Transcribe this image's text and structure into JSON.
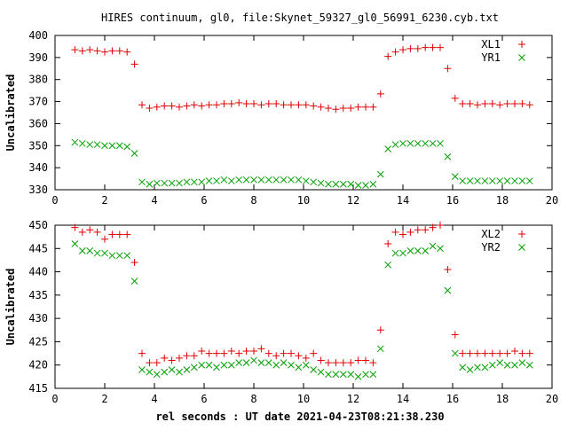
{
  "title": "HIRES continuum, gl0, file:Skynet_59327_gl0_56991_6230.cyb.txt",
  "xlabel": "rel seconds : UT date 2021-04-23T08:21:38.230",
  "colors": {
    "red": "#e00000",
    "green": "#00a000"
  },
  "chart_data": [
    {
      "type": "scatter",
      "ylabel": "Uncalibrated",
      "xlim": [
        0,
        20
      ],
      "ylim": [
        330,
        400
      ],
      "xticks": [
        0,
        2,
        4,
        6,
        8,
        10,
        12,
        14,
        16,
        18,
        20
      ],
      "yticks": [
        330,
        340,
        350,
        360,
        370,
        380,
        390,
        400
      ],
      "legend_position": "top-right",
      "series": [
        {
          "name": "XL1",
          "marker": "plus",
          "x": [
            0.8,
            1.1,
            1.4,
            1.7,
            2.0,
            2.3,
            2.6,
            2.9,
            3.2,
            3.5,
            3.8,
            4.1,
            4.4,
            4.7,
            5.0,
            5.3,
            5.6,
            5.9,
            6.2,
            6.5,
            6.8,
            7.1,
            7.4,
            7.7,
            8.0,
            8.3,
            8.6,
            8.9,
            9.2,
            9.5,
            9.8,
            10.1,
            10.4,
            10.7,
            11.0,
            11.3,
            11.6,
            11.9,
            12.2,
            12.5,
            12.8,
            13.1,
            13.4,
            13.7,
            14.0,
            14.3,
            14.6,
            14.9,
            15.2,
            15.5,
            15.8,
            16.1,
            16.4,
            16.7,
            17.0,
            17.3,
            17.6,
            17.9,
            18.2,
            18.5,
            18.8,
            19.1
          ],
          "y": [
            393.5,
            393.0,
            393.5,
            393.0,
            392.5,
            393.0,
            393.0,
            392.5,
            387.0,
            368.5,
            367.0,
            367.5,
            368.0,
            368.0,
            367.5,
            368.0,
            368.5,
            368.0,
            368.5,
            368.5,
            369.0,
            369.0,
            369.5,
            369.0,
            369.0,
            368.5,
            369.0,
            369.0,
            368.5,
            368.5,
            368.5,
            368.5,
            368.0,
            367.5,
            367.0,
            366.5,
            367.0,
            367.0,
            367.5,
            367.5,
            367.5,
            373.5,
            390.5,
            392.5,
            393.5,
            394.0,
            394.0,
            394.5,
            394.5,
            394.5,
            385.0,
            371.5,
            369.0,
            369.0,
            368.5,
            369.0,
            369.0,
            368.5,
            369.0,
            369.0,
            369.0,
            368.5
          ]
        },
        {
          "name": "YR1",
          "marker": "cross",
          "x": [
            0.8,
            1.1,
            1.4,
            1.7,
            2.0,
            2.3,
            2.6,
            2.9,
            3.2,
            3.5,
            3.8,
            4.1,
            4.4,
            4.7,
            5.0,
            5.3,
            5.6,
            5.9,
            6.2,
            6.5,
            6.8,
            7.1,
            7.4,
            7.7,
            8.0,
            8.3,
            8.6,
            8.9,
            9.2,
            9.5,
            9.8,
            10.1,
            10.4,
            10.7,
            11.0,
            11.3,
            11.6,
            11.9,
            12.2,
            12.5,
            12.8,
            13.1,
            13.4,
            13.7,
            14.0,
            14.3,
            14.6,
            14.9,
            15.2,
            15.5,
            15.8,
            16.1,
            16.4,
            16.7,
            17.0,
            17.3,
            17.6,
            17.9,
            18.2,
            18.5,
            18.8,
            19.1
          ],
          "y": [
            351.5,
            351.0,
            350.5,
            350.5,
            350.0,
            350.0,
            350.0,
            349.5,
            346.5,
            333.5,
            332.5,
            333.0,
            333.0,
            333.0,
            333.0,
            333.5,
            333.5,
            333.5,
            334.0,
            334.0,
            334.5,
            334.0,
            334.5,
            334.5,
            334.5,
            334.5,
            334.5,
            334.5,
            334.5,
            334.5,
            334.5,
            334.0,
            333.5,
            333.0,
            332.5,
            332.5,
            332.5,
            332.5,
            332.0,
            332.0,
            332.5,
            337.0,
            348.5,
            350.5,
            351.0,
            351.0,
            351.0,
            351.0,
            351.0,
            351.0,
            345.0,
            336.0,
            334.0,
            334.0,
            334.0,
            334.0,
            334.0,
            334.0,
            334.0,
            334.0,
            334.0,
            334.0
          ]
        }
      ]
    },
    {
      "type": "scatter",
      "ylabel": "Uncalibrated",
      "xlim": [
        0,
        20
      ],
      "ylim": [
        415,
        450
      ],
      "xticks": [
        0,
        2,
        4,
        6,
        8,
        10,
        12,
        14,
        16,
        18,
        20
      ],
      "yticks": [
        415,
        420,
        425,
        430,
        435,
        440,
        445,
        450
      ],
      "legend_position": "top-right",
      "series": [
        {
          "name": "XL2",
          "marker": "plus",
          "x": [
            0.8,
            1.1,
            1.4,
            1.7,
            2.0,
            2.3,
            2.6,
            2.9,
            3.2,
            3.5,
            3.8,
            4.1,
            4.4,
            4.7,
            5.0,
            5.3,
            5.6,
            5.9,
            6.2,
            6.5,
            6.8,
            7.1,
            7.4,
            7.7,
            8.0,
            8.3,
            8.6,
            8.9,
            9.2,
            9.5,
            9.8,
            10.1,
            10.4,
            10.7,
            11.0,
            11.3,
            11.6,
            11.9,
            12.2,
            12.5,
            12.8,
            13.1,
            13.4,
            13.7,
            14.0,
            14.3,
            14.6,
            14.9,
            15.2,
            15.5,
            15.8,
            16.1,
            16.4,
            16.7,
            17.0,
            17.3,
            17.6,
            17.9,
            18.2,
            18.5,
            18.8,
            19.1
          ],
          "y": [
            449.5,
            448.5,
            449.0,
            448.5,
            447.0,
            448.0,
            448.0,
            448.0,
            442.0,
            422.5,
            420.5,
            420.5,
            421.5,
            421.0,
            421.5,
            422.0,
            422.0,
            423.0,
            422.5,
            422.5,
            422.5,
            423.0,
            422.5,
            423.0,
            423.0,
            423.5,
            422.5,
            422.0,
            422.5,
            422.5,
            422.0,
            421.5,
            422.5,
            421.0,
            420.5,
            420.5,
            420.5,
            420.5,
            421.0,
            421.0,
            420.5,
            427.5,
            446.0,
            448.5,
            448.0,
            448.5,
            449.0,
            449.0,
            449.5,
            450.0,
            440.5,
            426.5,
            422.5,
            422.5,
            422.5,
            422.5,
            422.5,
            422.5,
            422.5,
            423.0,
            422.5,
            422.5
          ]
        },
        {
          "name": "YR2",
          "marker": "cross",
          "x": [
            0.8,
            1.1,
            1.4,
            1.7,
            2.0,
            2.3,
            2.6,
            2.9,
            3.2,
            3.5,
            3.8,
            4.1,
            4.4,
            4.7,
            5.0,
            5.3,
            5.6,
            5.9,
            6.2,
            6.5,
            6.8,
            7.1,
            7.4,
            7.7,
            8.0,
            8.3,
            8.6,
            8.9,
            9.2,
            9.5,
            9.8,
            10.1,
            10.4,
            10.7,
            11.0,
            11.3,
            11.6,
            11.9,
            12.2,
            12.5,
            12.8,
            13.1,
            13.4,
            13.7,
            14.0,
            14.3,
            14.6,
            14.9,
            15.2,
            15.5,
            15.8,
            16.1,
            16.4,
            16.7,
            17.0,
            17.3,
            17.6,
            17.9,
            18.2,
            18.5,
            18.8,
            19.1
          ],
          "y": [
            446.0,
            444.5,
            444.5,
            444.0,
            444.0,
            443.5,
            443.5,
            443.5,
            438.0,
            419.0,
            418.5,
            418.0,
            418.5,
            419.0,
            418.5,
            419.0,
            419.5,
            420.0,
            420.0,
            419.5,
            420.0,
            420.0,
            420.5,
            420.5,
            421.0,
            420.5,
            420.5,
            420.0,
            420.5,
            420.0,
            419.5,
            420.0,
            419.0,
            418.5,
            418.0,
            418.0,
            418.0,
            418.0,
            417.5,
            418.0,
            418.0,
            423.5,
            441.5,
            444.0,
            444.0,
            444.5,
            444.5,
            444.5,
            445.5,
            445.0,
            436.0,
            422.5,
            419.5,
            419.0,
            419.5,
            419.5,
            420.0,
            420.5,
            420.0,
            420.0,
            420.5,
            420.0
          ]
        }
      ]
    }
  ]
}
